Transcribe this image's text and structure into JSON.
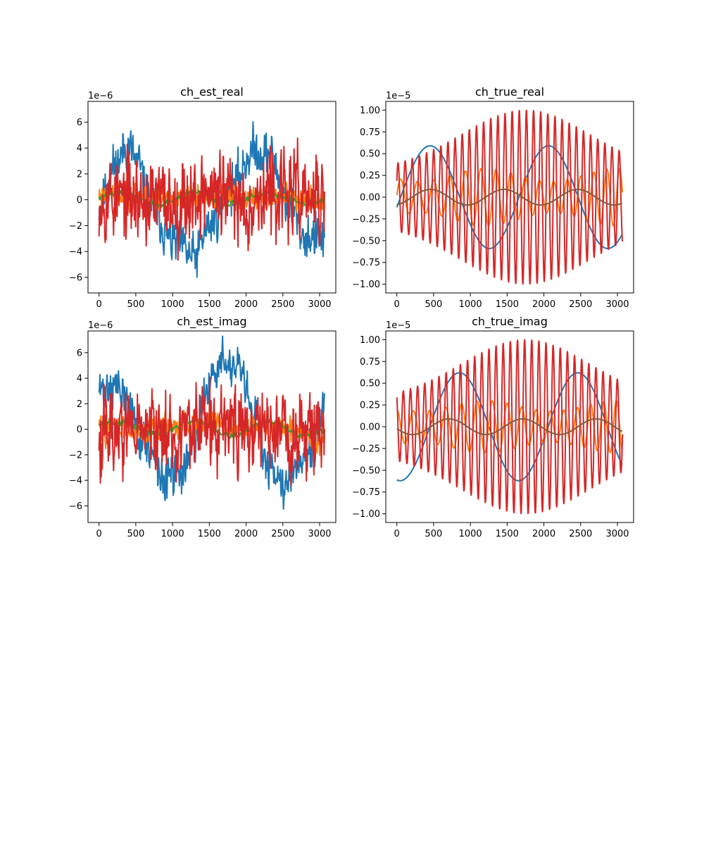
{
  "colors": {
    "C0": "#1f77b4",
    "C1": "#ff7f0e",
    "C2": "#2ca02c",
    "C3": "#d62728",
    "C4": "#8c564b"
  },
  "chart_data": [
    {
      "id": "est_real",
      "type": "line",
      "title": "ch_est_real",
      "offset_label": "1e−6",
      "xlim": [
        -150,
        3220
      ],
      "ylim": [
        -7.2,
        7.6
      ],
      "xticks": [
        0,
        500,
        1000,
        1500,
        2000,
        2500,
        3000
      ],
      "xtick_labels": [
        "0",
        "500",
        "1000",
        "1500",
        "2000",
        "2500",
        "3000"
      ],
      "yticks": [
        -6,
        -4,
        -2,
        0,
        2,
        4,
        6
      ],
      "ytick_labels": [
        "−6",
        "−4",
        "−2",
        "0",
        "2",
        "4",
        "6"
      ],
      "x_max": 3071,
      "series": [
        {
          "color": "#1f77b4",
          "kind": "noise",
          "x": [
            0,
            200,
            400,
            500,
            700,
            1000,
            1300,
            1500,
            1800,
            2100,
            2300,
            2600,
            2800,
            3071
          ],
          "y": [
            -0.5,
            2.5,
            4.2,
            3.0,
            -0.3,
            -3.2,
            -4.5,
            -2.0,
            1.0,
            3.8,
            3.5,
            -0.5,
            -2.8,
            -3.0
          ],
          "noise": 1.3,
          "step": 6,
          "seed": 11
        },
        {
          "color": "#ff7f0e",
          "kind": "noise",
          "x": [
            0,
            500,
            1000,
            1500,
            2000,
            2500,
            3071
          ],
          "y": [
            0.4,
            0.4,
            0.0,
            0.3,
            0.1,
            0.3,
            0.0
          ],
          "noise": 0.7,
          "step": 6,
          "seed": 23
        },
        {
          "color": "#2ca02c",
          "kind": "noise",
          "x": [
            0,
            300,
            800,
            1300,
            1800,
            2300,
            2800,
            3071
          ],
          "y": [
            0.3,
            0.6,
            -0.4,
            0.6,
            -0.3,
            0.5,
            -0.3,
            -0.2
          ],
          "noise": 0.18,
          "step": 10,
          "seed": 37
        },
        {
          "color": "#d62728",
          "kind": "noise",
          "x": [
            0,
            500,
            1000,
            1500,
            2000,
            2500,
            3071
          ],
          "y": [
            0.3,
            0.0,
            -0.2,
            0.6,
            -0.2,
            0.6,
            -0.2
          ],
          "noise": 2.3,
          "step": 6,
          "seed": 53
        }
      ]
    },
    {
      "id": "true_real",
      "type": "line",
      "title": "ch_true_real",
      "offset_label": "1e−5",
      "xlim": [
        -150,
        3220
      ],
      "ylim": [
        -1.1,
        1.1
      ],
      "xticks": [
        0,
        500,
        1000,
        1500,
        2000,
        2500,
        3000
      ],
      "xtick_labels": [
        "0",
        "500",
        "1000",
        "1500",
        "2000",
        "2500",
        "3000"
      ],
      "yticks": [
        -1.0,
        -0.75,
        -0.5,
        -0.25,
        0.0,
        0.25,
        0.5,
        0.75,
        1.0
      ],
      "ytick_labels": [
        "−1.00",
        "−0.75",
        "−0.50",
        "−0.25",
        "0.00",
        "0.25",
        "0.50",
        "0.75",
        "1.00"
      ],
      "x_max": 3071,
      "series": [
        {
          "color": "#1f77b4",
          "kind": "sine",
          "a0": 0.0,
          "a1": 0.59,
          "a1x": 0,
          "period": 1610,
          "period2": 0,
          "phase": 0.2,
          "tail": [
            2400,
            2900,
            0.57,
            0.63
          ]
        },
        {
          "color": "#ff7f0e",
          "kind": "chirp",
          "amp": 0.33,
          "amp_min": 0.18,
          "period_start": 230,
          "period_end": 170,
          "phase": 0.0,
          "env_center": 1200,
          "env_width": 900
        },
        {
          "color": "#2ca02c",
          "kind": "sine",
          "a0": 0.0,
          "a1": 0.09,
          "a1x": 0,
          "period": 1000,
          "period2": 0,
          "phase": 1.3,
          "tail": null
        },
        {
          "color": "#d62728",
          "kind": "fastsine",
          "amp_min": 0.3,
          "amp_max": 1.0,
          "amp_center": 1750,
          "amp_width": 1450,
          "period": 97,
          "phase": 0.5
        },
        {
          "color": "#8c564b",
          "kind": "sine",
          "a0": 0.0,
          "a1": 0.09,
          "a1x": 0,
          "period": 1000,
          "period2": 0,
          "phase": 1.3,
          "tail": null,
          "alpha": 0.75
        }
      ]
    },
    {
      "id": "est_imag",
      "type": "line",
      "title": "ch_est_imag",
      "offset_label": "1e−6",
      "xlim": [
        -150,
        3220
      ],
      "ylim": [
        -7.3,
        7.7
      ],
      "xticks": [
        0,
        500,
        1000,
        1500,
        2000,
        2500,
        3000
      ],
      "xtick_labels": [
        "0",
        "500",
        "1000",
        "1500",
        "2000",
        "2500",
        "3000"
      ],
      "yticks": [
        -6,
        -4,
        -2,
        0,
        2,
        4,
        6
      ],
      "ytick_labels": [
        "−6",
        "−4",
        "−2",
        "0",
        "2",
        "4",
        "6"
      ],
      "x_max": 3071,
      "series": [
        {
          "color": "#1f77b4",
          "kind": "noise",
          "x": [
            0,
            200,
            400,
            600,
            900,
            1100,
            1300,
            1500,
            1700,
            1900,
            2100,
            2300,
            2500,
            2700,
            2900,
            3071
          ],
          "y": [
            3.0,
            3.5,
            2.0,
            -1.0,
            -4.0,
            -3.5,
            -1.0,
            4.0,
            5.2,
            4.5,
            1.0,
            -2.5,
            -4.0,
            -2.5,
            -1.0,
            1.8
          ],
          "noise": 1.2,
          "step": 6,
          "seed": 71
        },
        {
          "color": "#ff7f0e",
          "kind": "noise",
          "x": [
            0,
            500,
            1000,
            1500,
            2000,
            2500,
            3071
          ],
          "y": [
            0.1,
            0.0,
            0.3,
            0.4,
            0.0,
            0.2,
            -0.8
          ],
          "noise": 0.7,
          "step": 6,
          "seed": 83
        },
        {
          "color": "#2ca02c",
          "kind": "noise",
          "x": [
            0,
            300,
            800,
            1300,
            1800,
            2300,
            2800,
            3071
          ],
          "y": [
            0.6,
            0.5,
            -0.4,
            0.6,
            -0.5,
            0.6,
            -0.5,
            -0.2
          ],
          "noise": 0.18,
          "step": 10,
          "seed": 97
        },
        {
          "color": "#d62728",
          "kind": "noise",
          "x": [
            0,
            500,
            1000,
            1500,
            2000,
            2500,
            3071
          ],
          "y": [
            -0.2,
            0.0,
            -0.4,
            0.3,
            0.0,
            -0.2,
            0.0
          ],
          "noise": 2.3,
          "step": 6,
          "seed": 113
        }
      ]
    },
    {
      "id": "true_imag",
      "type": "line",
      "title": "ch_true_imag",
      "offset_label": "1e−5",
      "xlim": [
        -150,
        3220
      ],
      "ylim": [
        -1.1,
        1.1
      ],
      "xticks": [
        0,
        500,
        1000,
        1500,
        2000,
        2500,
        3000
      ],
      "xtick_labels": [
        "0",
        "500",
        "1000",
        "1500",
        "2000",
        "2500",
        "3000"
      ],
      "yticks": [
        -1.0,
        -0.75,
        -0.5,
        -0.25,
        0.0,
        0.25,
        0.5,
        0.75,
        1.0
      ],
      "ytick_labels": [
        "−1.00",
        "−0.75",
        "−0.50",
        "−0.25",
        "0.00",
        "0.25",
        "0.50",
        "0.75",
        "1.00"
      ],
      "x_max": 3071,
      "series": [
        {
          "color": "#1f77b4",
          "kind": "sine",
          "a0": 0.0,
          "a1": 0.62,
          "a1x": 0,
          "period": 1610,
          "period2": 0,
          "phase": 1.75,
          "tail": null
        },
        {
          "color": "#ff7f0e",
          "kind": "chirp",
          "amp": 0.3,
          "amp_min": 0.18,
          "period_start": 230,
          "period_end": 170,
          "phase": 1.57,
          "env_center": 1200,
          "env_width": 900
        },
        {
          "color": "#2ca02c",
          "kind": "sine",
          "a0": 0.0,
          "a1": 0.09,
          "a1x": 0,
          "period": 1000,
          "period2": 0,
          "phase": 2.9,
          "tail": null
        },
        {
          "color": "#d62728",
          "kind": "fastsine",
          "amp_min": 0.3,
          "amp_max": 1.0,
          "amp_center": 1750,
          "amp_width": 1450,
          "period": 97,
          "phase": 2.1
        },
        {
          "color": "#8c564b",
          "kind": "sine",
          "a0": 0.0,
          "a1": 0.09,
          "a1x": 0,
          "period": 1000,
          "period2": 0,
          "phase": 2.9,
          "tail": null,
          "alpha": 0.75
        }
      ]
    }
  ]
}
